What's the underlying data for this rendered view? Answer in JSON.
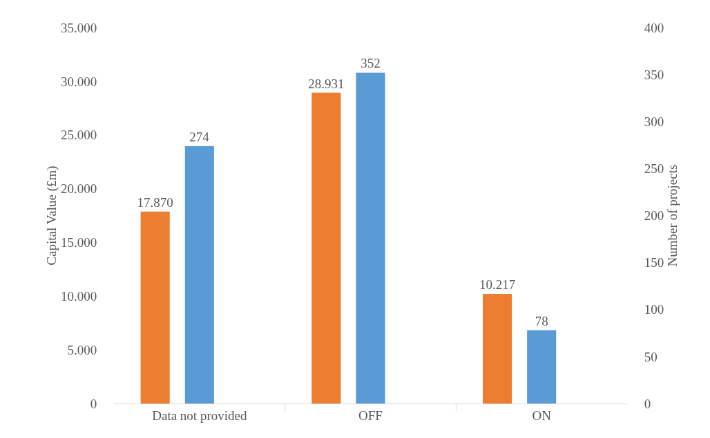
{
  "chart_data": {
    "type": "bar",
    "ylabel": "Capital Value (£m)",
    "y2label": "Number of projects",
    "categories": [
      "Data not provided",
      "OFF",
      "ON"
    ],
    "series": [
      {
        "color": "#ed7d31",
        "values": [
          17870,
          28931,
          10217
        ],
        "value_labels": [
          "17.870",
          "28.931",
          "10.217"
        ]
      },
      {
        "color": "#5b9bd5",
        "values": [
          274,
          352,
          78
        ],
        "axis": "y2",
        "value_labels": [
          "274",
          "352",
          "78"
        ]
      }
    ],
    "ylim": [
      0,
      35000
    ],
    "yticks": [
      {
        "value": 0,
        "label": "0"
      },
      {
        "value": 5000,
        "label": "5.000"
      },
      {
        "value": 10000,
        "label": "10.000"
      },
      {
        "value": 15000,
        "label": "15.000"
      },
      {
        "value": 20000,
        "label": "20.000"
      },
      {
        "value": 25000,
        "label": "25.000"
      },
      {
        "value": 30000,
        "label": "30.000"
      },
      {
        "value": 35000,
        "label": "35.000"
      }
    ],
    "y2lim": [
      0,
      400
    ],
    "y2ticks": [
      0,
      50,
      100,
      150,
      200,
      250,
      300,
      350,
      400
    ],
    "grid": false
  }
}
